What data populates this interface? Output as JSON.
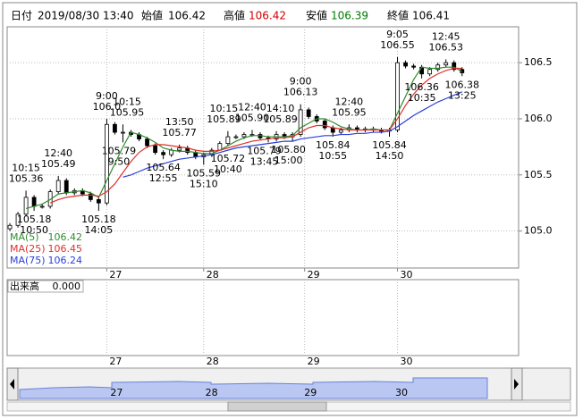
{
  "chart_data": {
    "type": "candlestick",
    "header": {
      "date_label": "日付",
      "date": "2019/08/30 13:40",
      "open_label": "始値",
      "open": 106.42,
      "high_label": "高値",
      "high": 106.42,
      "low_label": "安値",
      "low": 106.39,
      "close_label": "終値",
      "close": 106.41
    },
    "x": [
      0,
      2,
      4,
      6,
      8,
      10,
      12,
      14,
      16,
      18,
      20,
      22,
      24,
      26,
      28,
      30,
      32,
      34,
      36,
      38,
      40,
      42,
      44,
      46,
      48,
      50,
      52,
      54,
      56,
      58,
      60,
      62,
      64,
      66,
      68,
      70,
      72,
      74,
      76,
      78,
      80,
      82,
      84,
      86,
      88,
      90,
      92,
      94,
      96,
      98,
      100,
      102,
      104,
      106,
      108,
      110,
      112
    ],
    "open": [
      105.02,
      105.05,
      105.15,
      105.3,
      105.22,
      105.22,
      105.35,
      105.45,
      105.34,
      105.36,
      105.33,
      105.28,
      105.25,
      105.95,
      105.88,
      105.88,
      105.86,
      105.82,
      105.76,
      105.7,
      105.68,
      105.72,
      105.74,
      105.7,
      105.66,
      105.68,
      105.72,
      105.78,
      105.84,
      105.84,
      105.86,
      105.86,
      105.83,
      105.82,
      105.86,
      105.84,
      105.86,
      106.08,
      106.02,
      105.98,
      105.92,
      105.88,
      105.9,
      105.92,
      105.9,
      105.91,
      105.9,
      105.89,
      105.9,
      106.5,
      106.47,
      106.46,
      106.4,
      106.44,
      106.48,
      106.5,
      106.44
    ],
    "high": [
      105.07,
      105.17,
      105.36,
      105.32,
      105.24,
      105.37,
      105.49,
      105.47,
      105.38,
      105.38,
      105.35,
      105.3,
      106.0,
      105.97,
      105.95,
      105.9,
      105.88,
      105.84,
      105.78,
      105.72,
      105.74,
      105.77,
      105.76,
      105.72,
      105.7,
      105.74,
      105.8,
      105.89,
      105.86,
      105.88,
      105.9,
      105.88,
      105.85,
      105.89,
      105.88,
      105.88,
      106.13,
      106.1,
      106.04,
      106.0,
      105.94,
      105.92,
      105.95,
      105.94,
      105.93,
      105.93,
      105.92,
      105.92,
      106.55,
      106.52,
      106.49,
      106.48,
      106.46,
      106.5,
      106.53,
      106.52,
      106.46
    ],
    "low": [
      105.0,
      105.03,
      105.13,
      105.18,
      105.2,
      105.2,
      105.33,
      105.32,
      105.32,
      105.31,
      105.26,
      105.18,
      105.23,
      105.86,
      105.79,
      105.84,
      105.8,
      105.74,
      105.68,
      105.64,
      105.66,
      105.7,
      105.68,
      105.64,
      105.59,
      105.66,
      105.72,
      105.76,
      105.82,
      105.82,
      105.84,
      105.81,
      105.79,
      105.8,
      105.82,
      105.8,
      105.84,
      106.0,
      105.96,
      105.9,
      105.84,
      105.86,
      105.88,
      105.88,
      105.88,
      105.88,
      105.87,
      105.84,
      105.88,
      106.45,
      106.44,
      106.36,
      106.38,
      106.42,
      106.46,
      106.42,
      106.38
    ],
    "close": [
      105.05,
      105.15,
      105.3,
      105.22,
      105.22,
      105.35,
      105.45,
      105.34,
      105.36,
      105.33,
      105.28,
      105.25,
      105.95,
      105.88,
      105.88,
      105.86,
      105.82,
      105.76,
      105.7,
      105.68,
      105.72,
      105.74,
      105.7,
      105.66,
      105.68,
      105.72,
      105.78,
      105.84,
      105.84,
      105.86,
      105.86,
      105.83,
      105.82,
      105.86,
      105.84,
      105.86,
      106.08,
      106.02,
      105.98,
      105.92,
      105.88,
      105.9,
      105.92,
      105.9,
      105.91,
      105.9,
      105.89,
      105.9,
      106.5,
      106.47,
      106.46,
      106.4,
      106.44,
      106.48,
      106.5,
      106.44,
      106.41
    ],
    "series": [
      {
        "name": "MA(5)",
        "color": "#2e8b2e",
        "values": [
          null,
          null,
          105.2,
          105.22,
          105.24,
          105.28,
          105.33,
          105.34,
          105.35,
          105.36,
          105.34,
          105.3,
          105.45,
          105.6,
          105.75,
          105.88,
          105.86,
          105.83,
          105.79,
          105.74,
          105.72,
          105.71,
          105.71,
          105.7,
          105.69,
          105.69,
          105.72,
          105.76,
          105.8,
          105.83,
          105.85,
          105.85,
          105.84,
          105.84,
          105.84,
          105.85,
          105.92,
          105.96,
          106.0,
          106.0,
          105.97,
          105.93,
          105.91,
          105.9,
          105.9,
          105.91,
          105.9,
          105.9,
          106.05,
          106.2,
          106.35,
          106.46,
          106.45,
          106.45,
          106.46,
          106.46,
          106.42
        ]
      },
      {
        "name": "MA(25)",
        "color": "#e0302a",
        "values": [
          null,
          null,
          null,
          null,
          null,
          105.25,
          105.28,
          105.3,
          105.31,
          105.32,
          105.32,
          105.31,
          105.35,
          105.42,
          105.52,
          105.62,
          105.7,
          105.75,
          105.77,
          105.77,
          105.76,
          105.75,
          105.74,
          105.72,
          105.71,
          105.71,
          105.72,
          105.74,
          105.76,
          105.78,
          105.8,
          105.81,
          105.82,
          105.83,
          105.83,
          105.84,
          105.88,
          105.92,
          105.94,
          105.94,
          105.92,
          105.91,
          105.9,
          105.9,
          105.9,
          105.9,
          105.9,
          105.9,
          106.0,
          106.12,
          106.22,
          106.3,
          106.36,
          106.4,
          106.43,
          106.45,
          106.45
        ]
      },
      {
        "name": "MA(75)",
        "color": "#2a3fd6",
        "values": [
          null,
          null,
          null,
          null,
          null,
          null,
          null,
          null,
          null,
          null,
          null,
          null,
          null,
          null,
          105.48,
          105.5,
          105.53,
          105.56,
          105.58,
          105.6,
          105.62,
          105.64,
          105.65,
          105.66,
          105.67,
          105.68,
          105.7,
          105.72,
          105.74,
          105.75,
          105.76,
          105.77,
          105.78,
          105.79,
          105.8,
          105.8,
          105.82,
          105.83,
          105.84,
          105.85,
          105.85,
          105.86,
          105.86,
          105.87,
          105.87,
          105.88,
          105.88,
          105.89,
          105.93,
          105.98,
          106.03,
          106.07,
          106.11,
          106.15,
          106.18,
          106.21,
          106.24
        ]
      }
    ],
    "xlim": [
      -0.67,
      126
    ],
    "xticks": [
      {
        "value": 24,
        "label": "27"
      },
      {
        "value": 48,
        "label": "28"
      },
      {
        "value": 73,
        "label": "29"
      },
      {
        "value": 96,
        "label": "30"
      }
    ],
    "ylim": [
      104.67,
      106.82
    ],
    "yticks": [
      {
        "value": 105,
        "label": "105.0"
      },
      {
        "value": 105.5,
        "label": "105.5"
      },
      {
        "value": 106,
        "label": "106.0"
      },
      {
        "value": 106.5,
        "label": "106.5"
      }
    ],
    "grid": true,
    "annotations": [
      {
        "time": "10:15",
        "label": "105.36",
        "x": 4,
        "y": 105.36,
        "pos": "above"
      },
      {
        "time": "10:50",
        "label": "105.18",
        "x": 6,
        "y": 105.18,
        "pos": "below"
      },
      {
        "time": "12:40",
        "label": "105.49",
        "x": 12,
        "y": 105.49,
        "pos": "above"
      },
      {
        "time": "14:05",
        "label": "105.18",
        "x": 22,
        "y": 105.18,
        "pos": "below"
      },
      {
        "time": "9:00",
        "label": "106.0",
        "x": 24,
        "y": 106.0,
        "pos": "above"
      },
      {
        "time": "10:15",
        "label": "105.95",
        "x": 29,
        "y": 105.95,
        "pos": "above"
      },
      {
        "time": "9:50",
        "label": "105.79",
        "x": 27,
        "y": 105.79,
        "pos": "below"
      },
      {
        "time": "13:50",
        "label": "105.77",
        "x": 42,
        "y": 105.77,
        "pos": "above"
      },
      {
        "time": "12:55",
        "label": "105.64",
        "x": 38,
        "y": 105.64,
        "pos": "below"
      },
      {
        "time": "15:10",
        "label": "105.59",
        "x": 48,
        "y": 105.59,
        "pos": "below"
      },
      {
        "time": "10:15",
        "label": "105.89",
        "x": 53,
        "y": 105.89,
        "pos": "above"
      },
      {
        "time": "10:40",
        "label": "105.72",
        "x": 54,
        "y": 105.72,
        "pos": "below"
      },
      {
        "time": "12:40",
        "label": "105.90",
        "x": 60,
        "y": 105.9,
        "pos": "above"
      },
      {
        "time": "14:10",
        "label": "105.89",
        "x": 67,
        "y": 105.89,
        "pos": "above"
      },
      {
        "time": "13:45",
        "label": "105.79",
        "x": 63,
        "y": 105.79,
        "pos": "below"
      },
      {
        "time": "15:00",
        "label": "105.80",
        "x": 69,
        "y": 105.8,
        "pos": "below"
      },
      {
        "time": "9:00",
        "label": "106.13",
        "x": 72,
        "y": 106.13,
        "pos": "above"
      },
      {
        "time": "10:55",
        "label": "105.84",
        "x": 80,
        "y": 105.84,
        "pos": "below"
      },
      {
        "time": "12:40",
        "label": "105.95",
        "x": 84,
        "y": 105.95,
        "pos": "above"
      },
      {
        "time": "14:50",
        "label": "105.84",
        "x": 94,
        "y": 105.84,
        "pos": "below"
      },
      {
        "time": "9:05",
        "label": "106.55",
        "x": 96,
        "y": 106.55,
        "pos": "above"
      },
      {
        "time": "10:35",
        "label": "106.36",
        "x": 102,
        "y": 106.36,
        "pos": "below"
      },
      {
        "time": "12:45",
        "label": "106.53",
        "x": 108,
        "y": 106.53,
        "pos": "above"
      },
      {
        "time": "13:25",
        "label": "106.38",
        "x": 112,
        "y": 106.38,
        "pos": "below"
      }
    ],
    "volume": {
      "label": "出来高",
      "value": {
        "value": 0,
        "label": "0.000"
      }
    }
  }
}
